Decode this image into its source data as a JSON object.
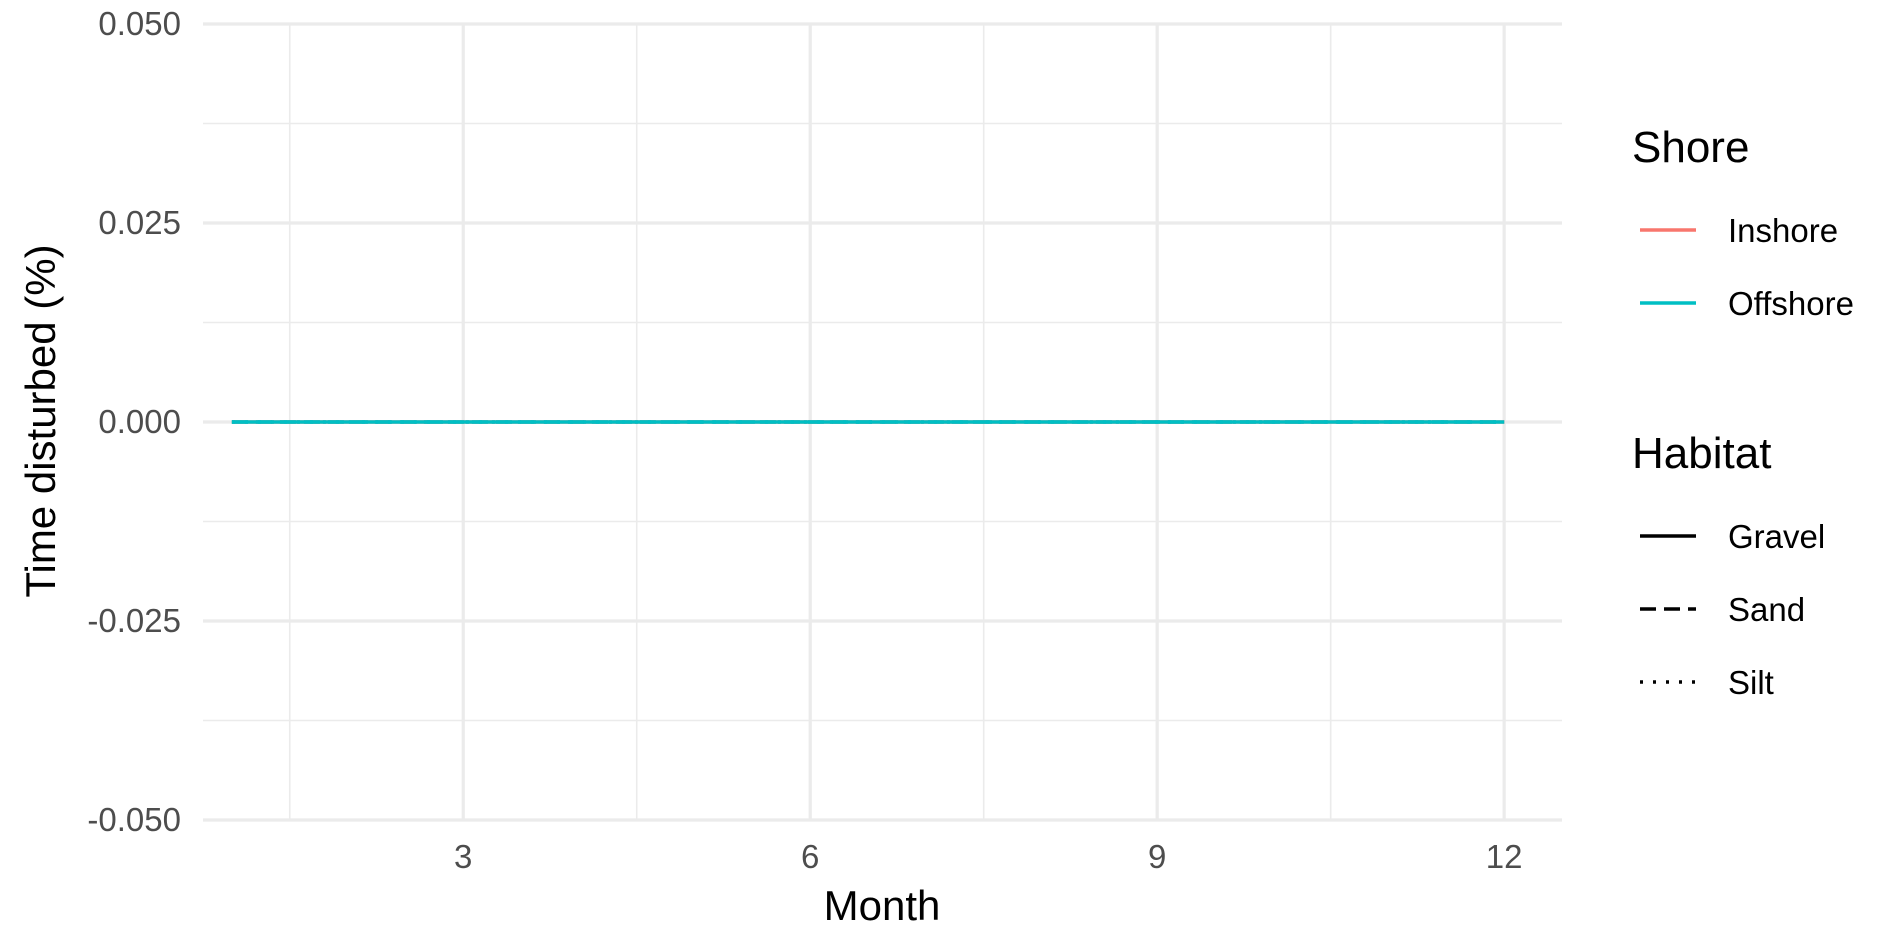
{
  "chart_data": {
    "type": "line",
    "title": "",
    "xlabel": "Month",
    "ylabel": "Time disturbed (%)",
    "xlim": [
      0.75,
      12.5
    ],
    "ylim": [
      -0.05,
      0.05
    ],
    "x_ticks": [
      3,
      6,
      9,
      12
    ],
    "y_ticks": [
      -0.05,
      -0.025,
      0,
      0.025,
      0.05
    ],
    "y_tick_labels": [
      "-0.050",
      "-0.025",
      "0.000",
      "0.025",
      "0.050"
    ],
    "grid": true,
    "legend_position": "right",
    "colors": {
      "Inshore": "#F8766D",
      "Offshore": "#00BFC4",
      "grid": "#EBEBEB",
      "background": "#FFFFFF"
    },
    "legends": [
      {
        "title": "Shore",
        "kind": "color",
        "items": [
          {
            "label": "Inshore",
            "color": "#F8766D",
            "linetype": "solid"
          },
          {
            "label": "Offshore",
            "color": "#00BFC4",
            "linetype": "solid"
          }
        ]
      },
      {
        "title": "Habitat",
        "kind": "linetype",
        "items": [
          {
            "label": "Gravel",
            "color": "#000000",
            "linetype": "solid"
          },
          {
            "label": "Sand",
            "color": "#000000",
            "linetype": "dashed"
          },
          {
            "label": "Silt",
            "color": "#000000",
            "linetype": "dotted"
          }
        ]
      }
    ],
    "series": [
      {
        "shore": "Inshore",
        "habitat": "Gravel",
        "linetype": "solid",
        "x": [
          1,
          2,
          3,
          4,
          5,
          6,
          7,
          8,
          9,
          10,
          11,
          12
        ],
        "values": [
          0,
          0,
          0,
          0,
          0,
          0,
          0,
          0,
          0,
          0,
          0,
          0
        ]
      },
      {
        "shore": "Inshore",
        "habitat": "Sand",
        "linetype": "dashed",
        "x": [
          1,
          2,
          3,
          4,
          5,
          6,
          7,
          8,
          9,
          10,
          11,
          12
        ],
        "values": [
          0,
          0,
          0,
          0,
          0,
          0,
          0,
          0,
          0,
          0,
          0,
          0
        ]
      },
      {
        "shore": "Inshore",
        "habitat": "Silt",
        "linetype": "dotted",
        "x": [
          1,
          2,
          3,
          4,
          5,
          6,
          7,
          8,
          9,
          10,
          11,
          12
        ],
        "values": [
          0,
          0,
          0,
          0,
          0,
          0,
          0,
          0,
          0,
          0,
          0,
          0
        ]
      },
      {
        "shore": "Offshore",
        "habitat": "Silt",
        "linetype": "dotted",
        "x": [
          1,
          2,
          3,
          4,
          5,
          6,
          7,
          8,
          9,
          10,
          11,
          12
        ],
        "values": [
          0,
          0,
          0,
          0,
          0,
          0,
          0,
          0,
          0,
          0,
          0,
          0
        ]
      },
      {
        "shore": "Offshore",
        "habitat": "Sand",
        "linetype": "dashed",
        "x": [
          1,
          2,
          3,
          4,
          5,
          6,
          7,
          8,
          9,
          10,
          11,
          12
        ],
        "values": [
          0,
          0,
          0,
          0,
          0,
          0,
          0,
          0,
          0,
          0,
          0,
          0
        ]
      },
      {
        "shore": "Offshore",
        "habitat": "Gravel",
        "linetype": "solid",
        "x": [
          1,
          2,
          3,
          4,
          5,
          6,
          7,
          8,
          9,
          10,
          11,
          12
        ],
        "values": [
          0,
          0,
          0,
          0,
          0,
          0,
          0,
          0,
          0,
          0,
          0,
          0
        ]
      }
    ]
  }
}
